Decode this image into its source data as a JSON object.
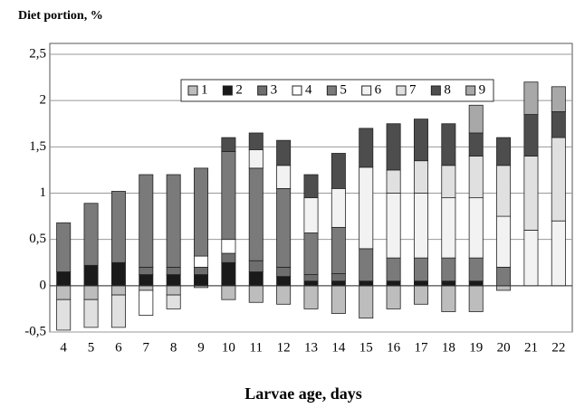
{
  "chart_data": {
    "type": "bar",
    "stacked": true,
    "title": "Diet portion, %",
    "x_label": "Larvae age, days",
    "categories": [
      "4",
      "5",
      "6",
      "7",
      "8",
      "9",
      "10",
      "11",
      "12",
      "13",
      "14",
      "15",
      "16",
      "17",
      "18",
      "19",
      "20",
      "21",
      "22"
    ],
    "series": [
      {
        "name": "1",
        "color": "#bdbdbd",
        "values": [
          -0.15,
          -0.15,
          -0.1,
          -0.05,
          -0.1,
          -0.02,
          -0.15,
          -0.18,
          -0.2,
          -0.25,
          -0.3,
          -0.35,
          -0.25,
          -0.2,
          -0.28,
          -0.28,
          -0.05,
          0,
          0
        ]
      },
      {
        "name": "2",
        "color": "#1a1a1a",
        "values": [
          0.15,
          0.22,
          0.25,
          0.12,
          0.12,
          0.12,
          0.25,
          0.15,
          0.1,
          0.05,
          0.05,
          0.05,
          0.05,
          0.05,
          0.05,
          0.05,
          0,
          0,
          0
        ]
      },
      {
        "name": "3",
        "color": "#6e6e6e",
        "values": [
          0,
          0,
          0,
          0.08,
          0.08,
          0.08,
          0.1,
          0.12,
          0.1,
          0.07,
          0.08,
          0,
          0,
          0,
          0,
          0,
          0,
          0,
          0
        ]
      },
      {
        "name": "4",
        "color": "#ffffff",
        "values": [
          0,
          0,
          0,
          -0.27,
          0,
          0.12,
          0.15,
          0,
          0,
          0,
          0,
          0,
          0,
          0,
          0,
          0,
          0,
          0,
          0
        ]
      },
      {
        "name": "5",
        "color": "#7a7a7a",
        "values": [
          0.53,
          0.67,
          0.77,
          1.0,
          1.0,
          0.95,
          0.95,
          1.0,
          0.85,
          0.45,
          0.5,
          0.35,
          0.25,
          0.25,
          0.25,
          0.25,
          0.2,
          0,
          0
        ]
      },
      {
        "name": "6",
        "color": "#f2f2f2",
        "values": [
          0,
          0,
          0,
          0,
          0,
          0,
          0,
          0.2,
          0.25,
          0.38,
          0.42,
          0.88,
          0.7,
          0.7,
          0.65,
          0.65,
          0.55,
          0.6,
          0.7
        ]
      },
      {
        "name": "7",
        "color": "#e0e0e0",
        "values": [
          -0.33,
          -0.3,
          -0.35,
          0,
          -0.15,
          0,
          0,
          0,
          0,
          0,
          0,
          0,
          0.25,
          0.35,
          0.35,
          0.45,
          0.55,
          0.8,
          0.9
        ]
      },
      {
        "name": "8",
        "color": "#4d4d4d",
        "values": [
          0,
          0,
          0,
          0,
          0,
          0,
          0.15,
          0.18,
          0.27,
          0.25,
          0.38,
          0.42,
          0.5,
          0.45,
          0.45,
          0.25,
          0.3,
          0.45,
          0.28
        ]
      },
      {
        "name": "9",
        "color": "#a8a8a8",
        "values": [
          0,
          0,
          0,
          0,
          0,
          0,
          0,
          0,
          0,
          0,
          0,
          0,
          0,
          0,
          0,
          0.3,
          0,
          0.35,
          0.27
        ]
      }
    ],
    "ylim": [
      -0.5,
      2.5
    ],
    "yticks": [
      {
        "value": -0.5,
        "label": "-0,5"
      },
      0,
      {
        "value": 0.5,
        "label": "0,5"
      },
      1,
      {
        "value": 1.5,
        "label": "1,5"
      },
      2,
      {
        "value": 2.5,
        "label": "2,5"
      }
    ],
    "grid": true
  }
}
